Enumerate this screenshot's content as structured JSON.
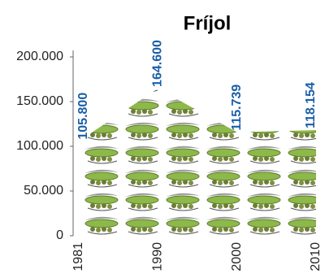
{
  "chart_data": {
    "type": "area",
    "title": "Fríjol",
    "categories": [
      "1981",
      "1990",
      "2000",
      "2010"
    ],
    "values": [
      105800,
      164600,
      115739,
      118154
    ],
    "value_labels": [
      "105.800",
      "164.600",
      "115.739",
      "118.154"
    ],
    "ylim": [
      0,
      200000
    ],
    "yticks": [
      0,
      {
        "value": 50000,
        "label": "50.000"
      },
      {
        "value": 100000,
        "label": "100.000"
      },
      {
        "value": 150000,
        "label": "150.000"
      },
      {
        "value": 200000,
        "label": "200.000"
      }
    ],
    "color": "#1a5ea8",
    "fill_color": "#7fa845"
  }
}
